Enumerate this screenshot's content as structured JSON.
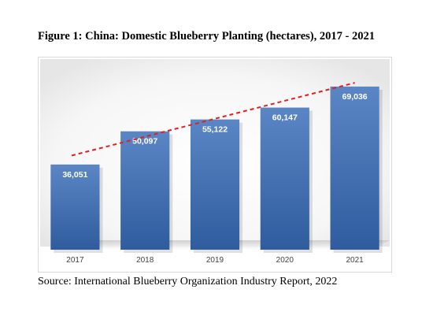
{
  "title": "Figure 1: China: Domestic Blueberry Planting (hectares), 2017 - 2021",
  "source": "Source: International Blueberry Organization Industry Report, 2022",
  "colors": {
    "bar_top": "#5b86c5",
    "bar_bottom": "#2f5c9e",
    "trendline": "#e02020",
    "label_text": "#ffffff",
    "tick_text": "#404040"
  },
  "chart_data": {
    "type": "bar",
    "categories": [
      "2017",
      "2018",
      "2019",
      "2020",
      "2021"
    ],
    "values": [
      36051,
      50097,
      55122,
      60147,
      69036
    ],
    "value_labels": [
      "36,051",
      "50,097",
      "55,122",
      "60,147",
      "69,036"
    ],
    "title": "Figure 1: China: Domestic Blueberry Planting (hectares), 2017 - 2021",
    "xlabel": "",
    "ylabel": "",
    "ylim": [
      0,
      80000
    ],
    "grid": false,
    "legend": "none",
    "trendline": "linear"
  }
}
